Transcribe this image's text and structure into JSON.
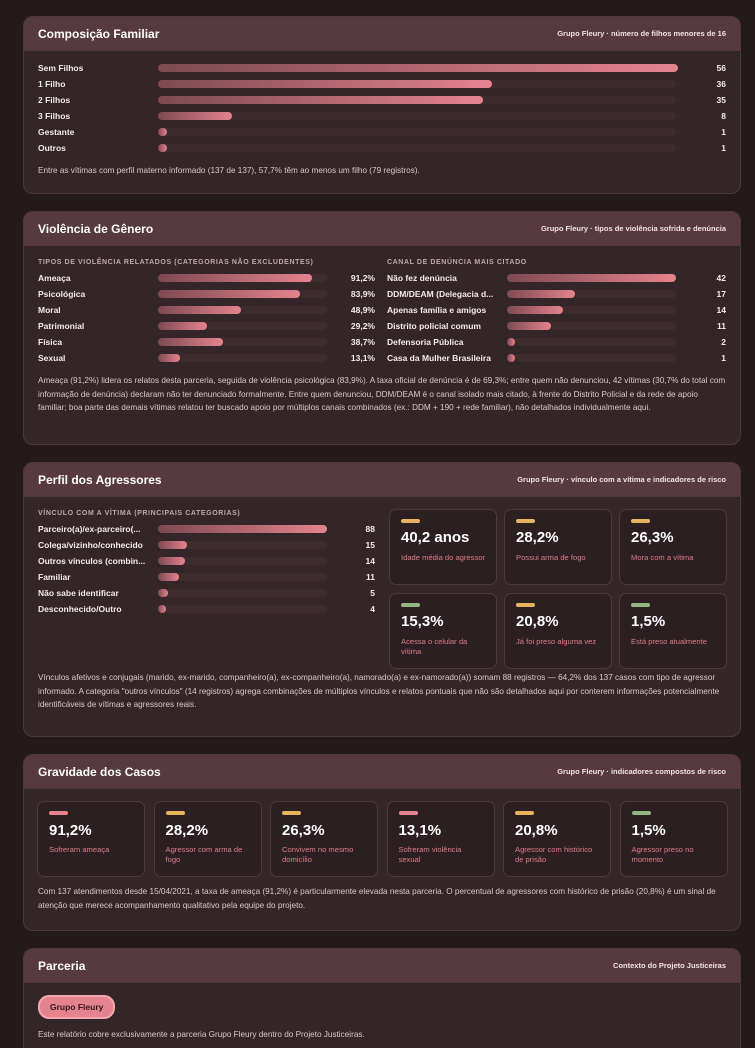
{
  "composicao": {
    "title": "Composição Familiar",
    "subtitle": "Grupo Fleury · número de filhos menores de 16",
    "rows": [
      {
        "label": "Sem Filhos",
        "value": 56
      },
      {
        "label": "1 Filho",
        "value": 36
      },
      {
        "label": "2 Filhos",
        "value": 35
      },
      {
        "label": "3 Filhos",
        "value": 8
      },
      {
        "label": "Gestante",
        "value": 1
      },
      {
        "label": "Outros",
        "value": 1
      }
    ],
    "note": "Entre as vítimas com perfil materno informado (137 de 137), 57,7% têm ao menos um filho (79 registros)."
  },
  "violencia": {
    "title": "Violência de Gênero",
    "subtitle": "Grupo Fleury · tipos de violência sofrida e denúncia",
    "left_head": "TIPOS DE VIOLÊNCIA RELATADOS (CATEGORIAS NÃO EXCLUDENTES)",
    "right_head": "CANAL DE DENÚNCIA MAIS CITADO",
    "tipos": [
      {
        "label": "Ameaça",
        "value": "91,2%",
        "pct": 91.2
      },
      {
        "label": "Psicológica",
        "value": "83,9%",
        "pct": 83.9
      },
      {
        "label": "Moral",
        "value": "48,9%",
        "pct": 48.9
      },
      {
        "label": "Patrimonial",
        "value": "29,2%",
        "pct": 29.2
      },
      {
        "label": "Física",
        "value": "38,7%",
        "pct": 38.7
      },
      {
        "label": "Sexual",
        "value": "13,1%",
        "pct": 13.1
      }
    ],
    "canais": [
      {
        "label": "Não fez denúncia",
        "value": 42
      },
      {
        "label": "DDM/DEAM (Delegacia d...",
        "value": 17
      },
      {
        "label": "Apenas família e amigos",
        "value": 14
      },
      {
        "label": "Distrito policial comum",
        "value": 11
      },
      {
        "label": "Defensoria Pública",
        "value": 2
      },
      {
        "label": "Casa da Mulher Brasileira",
        "value": 1
      }
    ],
    "note": "Ameaça (91,2%) lidera os relatos desta parceria, seguida de violência psicológica (83,9%). A taxa oficial de denúncia é de 69,3%; entre quem não denunciou, 42 vítimas (30,7% do total com informação de denúncia) declaram não ter denunciado formalmente. Entre quem denunciou, DDM/DEAM é o canal isolado mais citado, à frente do Distrito Policial e da rede de apoio familiar; boa parte das demais vítimas relatou ter buscado apoio por múltiplos canais combinados (ex.: DDM + 190 + rede familiar), não detalhados individualmente aqui."
  },
  "agressores": {
    "title": "Perfil dos Agressores",
    "subtitle": "Grupo Fleury · vínculo com a vítima e indicadores de risco",
    "left_head": "VÍNCULO COM A VÍTIMA (PRINCIPAIS CATEGORIAS)",
    "vinculos": [
      {
        "label": "Parceiro(a)/ex-parceiro(...",
        "value": 88
      },
      {
        "label": "Colega/vizinho/conhecido",
        "value": 15
      },
      {
        "label": "Outros vínculos (combin...",
        "value": 14
      },
      {
        "label": "Familiar",
        "value": 11
      },
      {
        "label": "Não sabe identificar",
        "value": 5
      },
      {
        "label": "Desconhecido/Outro",
        "value": 4
      }
    ],
    "stats": [
      {
        "value": "40,2 anos",
        "caption": "Idade média do agressor",
        "color": "#e8b35f"
      },
      {
        "value": "28,2%",
        "caption": "Possui arma de fogo",
        "color": "#e8b35f"
      },
      {
        "value": "26,3%",
        "caption": "Mora com a vítima",
        "color": "#e8b35f"
      },
      {
        "value": "15,3%",
        "caption": "Acessa o celular da vítima",
        "color": "#93b884"
      },
      {
        "value": "20,8%",
        "caption": "Já foi preso alguma vez",
        "color": "#e8b35f"
      },
      {
        "value": "1,5%",
        "caption": "Está preso atualmente",
        "color": "#93b884"
      }
    ],
    "note": "Vínculos afetivos e conjugais (marido, ex-marido, companheiro(a), ex-companheiro(a), namorado(a) e ex-namorado(a)) somam 88 registros — 64,2% dos 137 casos com tipo de agressor informado. A categoria \"outros vínculos\" (14 registros) agrega combinações de múltiplos vínculos e relatos pontuais que não são detalhados aqui por conterem informações potencialmente identificáveis de vítimas e agressores reais."
  },
  "gravidade": {
    "title": "Gravidade dos Casos",
    "subtitle": "Grupo Fleury · indicadores compostos de risco",
    "stats": [
      {
        "value": "91,2%",
        "caption": "Sofreram ameaça",
        "color": "#e5838e"
      },
      {
        "value": "28,2%",
        "caption": "Agressor com arma de fogo",
        "color": "#e8b35f"
      },
      {
        "value": "26,3%",
        "caption": "Convivem no mesmo domicílio",
        "color": "#e8b35f"
      },
      {
        "value": "13,1%",
        "caption": "Sofreram violência sexual",
        "color": "#e5838e"
      },
      {
        "value": "20,8%",
        "caption": "Agressor com histórico de prisão",
        "color": "#e8b35f"
      },
      {
        "value": "1,5%",
        "caption": "Agressor preso no momento",
        "color": "#93b884"
      }
    ],
    "note": "Com 137 atendimentos desde 15/04/2021, a taxa de ameaça (91,2%) é particularmente elevada nesta parceria. O percentual de agressores com histórico de prisão (20,8%) é um sinal de atenção que merece acompanhamento qualitativo pela equipe do projeto."
  },
  "parceria": {
    "title": "Parceria",
    "subtitle": "Contexto do Projeto Justiceiras",
    "chip": "Grupo Fleury",
    "note": "Este relatório cobre exclusivamente a parceria Grupo Fleury dentro do Projeto Justiceiras."
  }
}
